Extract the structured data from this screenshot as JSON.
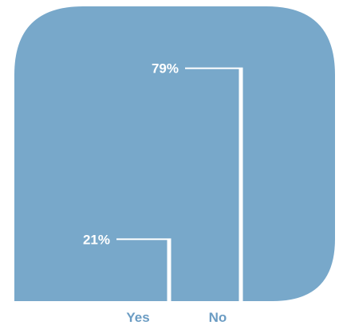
{
  "chart_data": {
    "type": "bar",
    "categories": [
      "Yes",
      "No"
    ],
    "values": [
      21,
      79
    ],
    "value_labels": [
      "21%",
      "79%"
    ],
    "unit": "%",
    "ylim": [
      0,
      100
    ],
    "grid": false,
    "legend": "none",
    "title": "",
    "xlabel": "",
    "ylabel": ""
  },
  "colors": {
    "fill": "#78a8ca",
    "separator": "#ffffff",
    "label_text": "#ffffff",
    "category_text": "#6b9cc3"
  }
}
